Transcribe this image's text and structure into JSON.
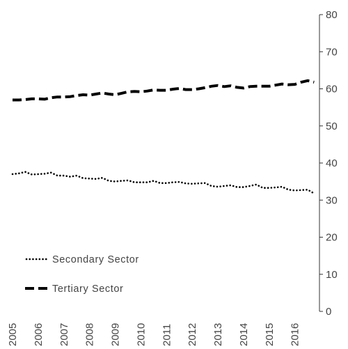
{
  "chart_data": {
    "type": "line",
    "title": "",
    "xlabel": "",
    "ylabel": "",
    "x_ticks": [
      "2005",
      "2006",
      "2007",
      "2008",
      "2009",
      "2010",
      "2011",
      "2012",
      "2013",
      "2014",
      "2015",
      "2016"
    ],
    "y_ticks": [
      "0",
      "10",
      "20",
      "30",
      "40",
      "50",
      "60",
      "70",
      "80"
    ],
    "xlim": [
      2005,
      2016.85
    ],
    "ylim": [
      0,
      80
    ],
    "y_axis_side": "right",
    "grid": false,
    "legend_position": "bottom-left",
    "series": [
      {
        "name": "Secondary Sector",
        "style": "dotted",
        "color": "#000000",
        "x": [
          2005.0,
          2005.25,
          2005.5,
          2005.75,
          2006.0,
          2006.25,
          2006.5,
          2006.75,
          2007.0,
          2007.25,
          2007.5,
          2007.75,
          2008.0,
          2008.25,
          2008.5,
          2008.75,
          2009.0,
          2009.25,
          2009.5,
          2009.75,
          2010.0,
          2010.25,
          2010.5,
          2010.75,
          2011.0,
          2011.25,
          2011.5,
          2011.75,
          2012.0,
          2012.25,
          2012.5,
          2012.75,
          2013.0,
          2013.25,
          2013.5,
          2013.75,
          2014.0,
          2014.25,
          2014.5,
          2014.75,
          2015.0,
          2015.25,
          2015.5,
          2015.75,
          2016.0,
          2016.25,
          2016.5,
          2016.75
        ],
        "values": [
          37.0,
          37.2,
          37.6,
          36.9,
          37.0,
          37.1,
          37.4,
          36.6,
          36.6,
          36.3,
          36.6,
          35.9,
          35.8,
          35.7,
          36.0,
          35.2,
          35.0,
          35.2,
          35.3,
          34.8,
          34.8,
          34.8,
          35.2,
          34.6,
          34.6,
          34.8,
          34.9,
          34.5,
          34.4,
          34.5,
          34.6,
          33.8,
          33.6,
          33.8,
          34.0,
          33.5,
          33.5,
          33.8,
          34.2,
          33.3,
          33.3,
          33.4,
          33.6,
          32.8,
          32.6,
          32.7,
          32.8,
          31.8
        ]
      },
      {
        "name": "Tertiary Sector",
        "style": "dashed",
        "color": "#000000",
        "x": [
          2005.0,
          2005.25,
          2005.5,
          2005.75,
          2006.0,
          2006.25,
          2006.5,
          2006.75,
          2007.0,
          2007.25,
          2007.5,
          2007.75,
          2008.0,
          2008.25,
          2008.5,
          2008.75,
          2009.0,
          2009.25,
          2009.5,
          2009.75,
          2010.0,
          2010.25,
          2010.5,
          2010.75,
          2011.0,
          2011.25,
          2011.5,
          2011.75,
          2012.0,
          2012.25,
          2012.5,
          2012.75,
          2013.0,
          2013.25,
          2013.5,
          2013.75,
          2014.0,
          2014.25,
          2014.5,
          2014.75,
          2015.0,
          2015.25,
          2015.5,
          2015.75,
          2016.0,
          2016.25,
          2016.5,
          2016.75
        ],
        "values": [
          57.0,
          57.0,
          57.1,
          57.3,
          57.3,
          57.2,
          57.6,
          57.8,
          57.8,
          57.9,
          58.2,
          58.4,
          58.3,
          58.6,
          58.9,
          58.6,
          58.4,
          58.8,
          59.2,
          59.3,
          59.2,
          59.4,
          59.7,
          59.6,
          59.6,
          59.9,
          60.1,
          59.8,
          59.8,
          60.0,
          60.3,
          60.7,
          60.9,
          60.6,
          60.8,
          60.4,
          60.2,
          60.6,
          60.7,
          60.7,
          60.7,
          61.0,
          61.3,
          61.1,
          61.2,
          61.8,
          62.2,
          61.8
        ]
      }
    ]
  }
}
